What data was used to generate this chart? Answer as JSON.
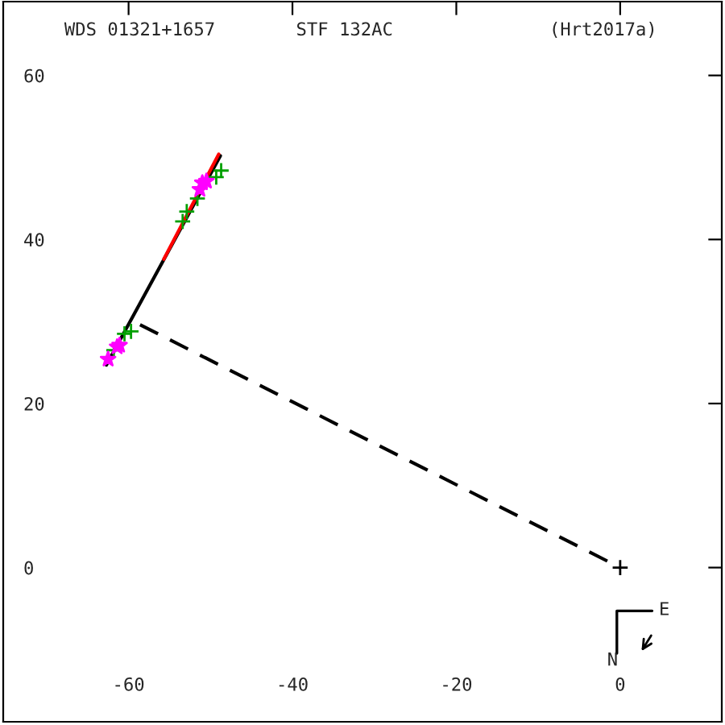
{
  "chart_data": {
    "type": "scatter",
    "title": "WDS 01321+1657",
    "subtitle": "STF 132AC",
    "annotations": [
      "(Hrt2017a)",
      "E",
      "N"
    ],
    "xlim": [
      -75.3,
      12.4
    ],
    "ylim": [
      -18.8,
      69.0
    ],
    "xticks": [
      -60,
      -40,
      -20,
      0
    ],
    "yticks": [
      0,
      20,
      40,
      60
    ],
    "grid": false,
    "legend": false,
    "series": [
      {
        "type": "line",
        "color": "#000000",
        "line_style": "solid",
        "x": [
          -62.7,
          -48.8
        ],
        "values": [
          24.7,
          50.2
        ]
      },
      {
        "type": "line",
        "color": "#ff0000",
        "line_style": "solid",
        "x": [
          -55.7,
          -49.0
        ],
        "values": [
          37.6,
          50.4
        ]
      },
      {
        "type": "line",
        "color": "#000000",
        "line_style": "dashed",
        "x": [
          -58.6,
          0
        ],
        "values": [
          29.6,
          0
        ]
      },
      {
        "color": "#00a000",
        "marker": "cross",
        "x": [
          -48.7,
          -49.3,
          -51.6,
          -52.9,
          -53.4,
          -59.7,
          -60.5,
          -61.8
        ],
        "values": [
          48.4,
          47.6,
          45.0,
          43.4,
          42.2,
          28.8,
          28.5,
          26.5
        ]
      },
      {
        "color": "#ff00ff",
        "marker": "star",
        "x": [
          -51.0,
          -50.5,
          -51.3,
          -62.5,
          -61.4,
          -61.1
        ],
        "values": [
          46.9,
          47.1,
          46.1,
          25.4,
          26.9,
          27.1
        ]
      },
      {
        "color": "#000000",
        "marker": "cross",
        "x": [
          0
        ],
        "values": [
          0
        ]
      }
    ]
  }
}
